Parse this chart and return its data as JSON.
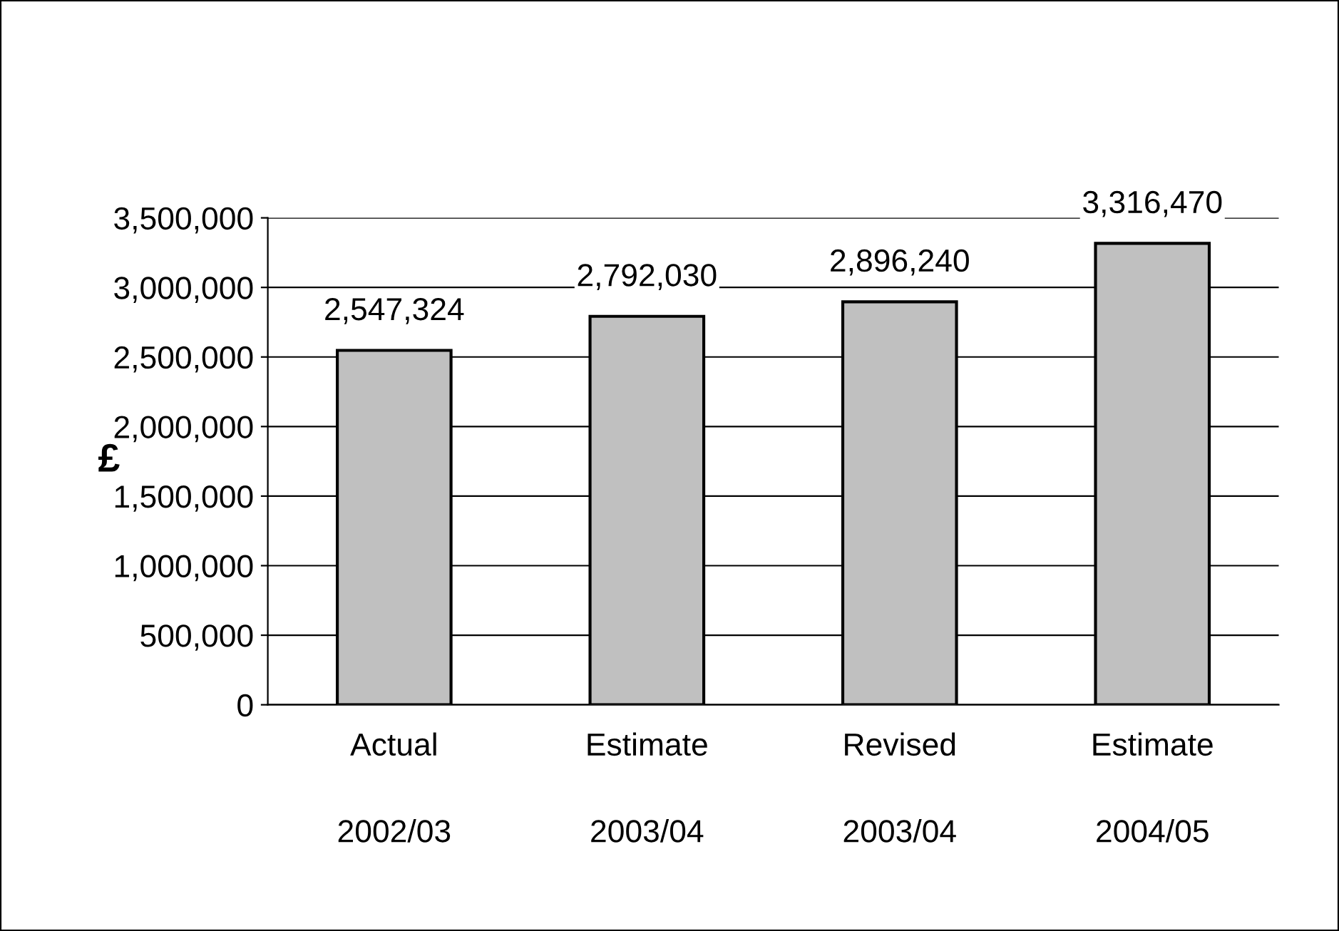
{
  "chart_data": {
    "type": "bar",
    "ylabel": "£",
    "categories": [
      "Actual\n\n2002/03",
      "Estimate\n\n2003/04",
      "Revised\n\n2003/04",
      "Estimate\n\n2004/05"
    ],
    "values": [
      2547324,
      2792030,
      2896240,
      3316470
    ],
    "color": "#c0c0c0",
    "ylim": [
      0,
      3500000
    ],
    "yticks": [
      {
        "value": 0,
        "label": "0"
      },
      {
        "value": 500000,
        "label": "500,000"
      },
      {
        "value": 1000000,
        "label": "1,000,000"
      },
      {
        "value": 1500000,
        "label": "1,500,000"
      },
      {
        "value": 2000000,
        "label": "2,000,000"
      },
      {
        "value": 2500000,
        "label": "2,500,000"
      },
      {
        "value": 3000000,
        "label": "3,000,000"
      },
      {
        "value": 3500000,
        "label": "3,500,000"
      }
    ],
    "value_labels": [
      "2,547,324",
      "2,792,030",
      "2,896,240",
      "3,316,470"
    ],
    "grid": "y",
    "legend": false
  }
}
